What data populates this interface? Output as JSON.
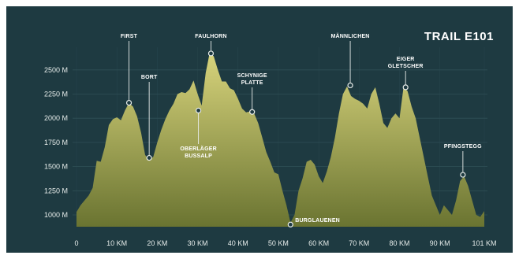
{
  "colors": {
    "background": "#1e3a41",
    "grid": "#2f4f56",
    "area_top": "#d8d47c",
    "area_bottom": "#6a7431",
    "text": "#ffffff",
    "leader": "#e8ecea"
  },
  "chart_data": {
    "type": "area",
    "title": "TRAIL E101",
    "xlabel": "",
    "ylabel": "",
    "xlim": [
      0,
      101
    ],
    "ylim": [
      878,
      2700
    ],
    "grid": true,
    "x_ticks": [
      0,
      10,
      20,
      30,
      40,
      50,
      60,
      70,
      80,
      90,
      101
    ],
    "x_tick_labels": [
      "0",
      "10 KM",
      "20 KM",
      "30 KM",
      "40 KM",
      "50 KM",
      "60 KM",
      "70 KM",
      "80 KM",
      "90 KM",
      "101 KM"
    ],
    "y_ticks": [
      2500,
      2250,
      2000,
      1750,
      1500,
      1250,
      1000
    ],
    "y_tick_labels": [
      "2500 M",
      "2250 M",
      "2000 M",
      "1750 M",
      "1500 M",
      "1250 M",
      "1000 M"
    ],
    "series": [
      {
        "x": [
          0,
          1,
          2,
          3,
          4,
          5,
          6,
          7,
          8,
          9,
          10,
          11,
          12,
          13,
          14,
          15,
          16,
          17,
          18,
          19,
          20,
          21,
          22,
          23,
          24,
          25,
          26,
          27,
          28,
          29,
          30,
          31,
          32,
          33,
          34,
          35,
          36,
          37,
          38,
          39,
          40,
          41,
          42,
          43,
          44,
          45,
          46,
          47,
          48,
          49,
          50,
          51,
          52,
          53,
          54,
          55,
          56,
          57,
          58,
          59,
          60,
          61,
          62,
          63,
          64,
          65,
          66,
          67,
          68,
          69,
          70,
          71,
          72,
          73,
          74,
          75,
          76,
          77,
          78,
          79,
          80,
          81,
          82,
          83,
          84,
          85,
          86,
          87,
          88,
          89,
          90,
          91,
          92,
          93,
          94,
          95,
          96,
          97,
          98,
          99,
          100,
          101
        ],
        "y": [
          1030,
          1100,
          1150,
          1200,
          1280,
          1560,
          1550,
          1700,
          1930,
          1990,
          2010,
          1980,
          2080,
          2160,
          2120,
          2020,
          1850,
          1620,
          1570,
          1600,
          1750,
          1880,
          1990,
          2080,
          2150,
          2250,
          2270,
          2260,
          2300,
          2390,
          2250,
          2130,
          2470,
          2680,
          2640,
          2500,
          2380,
          2380,
          2310,
          2290,
          2200,
          2100,
          2060,
          2070,
          2050,
          1950,
          1800,
          1650,
          1550,
          1440,
          1420,
          1250,
          1100,
          920,
          1000,
          1250,
          1380,
          1550,
          1570,
          1520,
          1400,
          1330,
          1450,
          1600,
          1800,
          2050,
          2250,
          2330,
          2230,
          2200,
          2180,
          2150,
          2100,
          2250,
          2320,
          2150,
          1950,
          1900,
          2000,
          2050,
          2000,
          2320,
          2280,
          2120,
          2000,
          1800,
          1600,
          1400,
          1200,
          1100,
          1000,
          1100,
          1050,
          1000,
          1150,
          1350,
          1400,
          1300,
          1150,
          1000,
          980,
          1040
        ]
      }
    ],
    "markers": [
      {
        "label": [
          "FIRST"
        ],
        "x": 13,
        "y": 2160
      },
      {
        "label": [
          "BORT"
        ],
        "x": 18,
        "y": 1590
      },
      {
        "label": [
          "FAULHORN"
        ],
        "x": 33.3,
        "y": 2670
      },
      {
        "label": [
          "OBERLÄGER",
          "BUSSALP"
        ],
        "x": 30.2,
        "y": 2080
      },
      {
        "label": [
          "SCHYNIGE",
          "PLATTE"
        ],
        "x": 43.5,
        "y": 2065
      },
      {
        "label": [
          "BURGLAUENEN"
        ],
        "x": 53,
        "y": 900
      },
      {
        "label": [
          "MÄNNLICHEN"
        ],
        "x": 67.8,
        "y": 2340
      },
      {
        "label": [
          "EIGER",
          "GLETSCHER"
        ],
        "x": 81.5,
        "y": 2320
      },
      {
        "label": [
          "PFINGSTEGG"
        ],
        "x": 95.7,
        "y": 1415
      }
    ]
  }
}
